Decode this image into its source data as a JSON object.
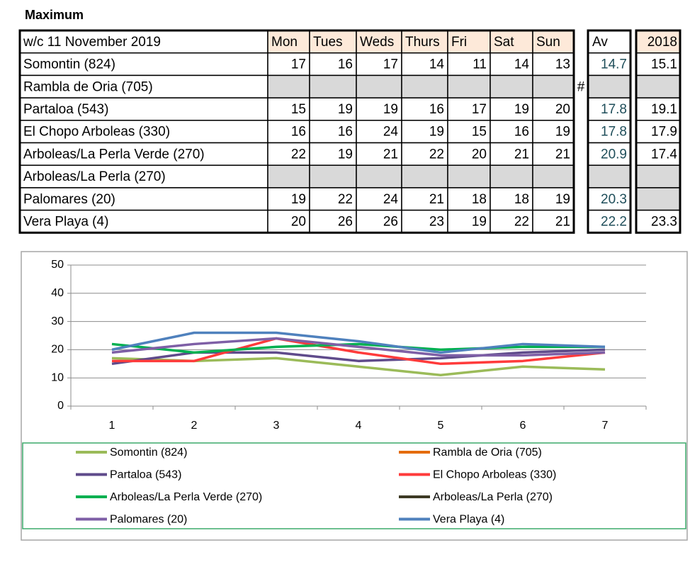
{
  "title": "Maximum",
  "table": {
    "header": [
      "w/c 11 November 2019",
      "Mon",
      "Tues",
      "Weds",
      "Thurs",
      "Fri",
      "Sat",
      "Sun",
      "Av",
      "2018"
    ],
    "rows": [
      {
        "name": "Somontin (824)",
        "values": [
          17,
          16,
          17,
          14,
          11,
          14,
          13
        ],
        "av": 14.7,
        "y2018": 15.1
      },
      {
        "name": "Rambla de Oria (705)",
        "values": [
          null,
          null,
          null,
          null,
          null,
          null,
          null
        ],
        "note": "#",
        "av": null,
        "y2018": null
      },
      {
        "name": "Partaloa (543)",
        "values": [
          15,
          19,
          19,
          16,
          17,
          19,
          20
        ],
        "av": 17.8,
        "y2018": 19.1
      },
      {
        "name": "El Chopo  Arboleas (330)",
        "values": [
          16,
          16,
          24,
          19,
          15,
          16,
          19
        ],
        "av": 17.8,
        "y2018": 17.9
      },
      {
        "name": "Arboleas/La Perla Verde (270)",
        "values": [
          22,
          19,
          21,
          22,
          20,
          21,
          21
        ],
        "av": 20.9,
        "y2018": 17.4
      },
      {
        "name": "Arboleas/La Perla (270)",
        "values": [
          null,
          null,
          null,
          null,
          null,
          null,
          null
        ],
        "av": null,
        "y2018": null
      },
      {
        "name": "Palomares (20)",
        "values": [
          19,
          22,
          24,
          21,
          18,
          18,
          19
        ],
        "av": 20.3,
        "y2018": null
      },
      {
        "name": "Vera Playa (4)",
        "values": [
          20,
          26,
          26,
          23,
          19,
          22,
          21
        ],
        "av": 22.2,
        "y2018": 23.3
      }
    ]
  },
  "chart_data": {
    "type": "line",
    "categories": [
      1,
      2,
      3,
      4,
      5,
      6,
      7
    ],
    "ylim": [
      0,
      50
    ],
    "yticks": [
      0,
      10,
      20,
      30,
      40,
      50
    ],
    "grid": true,
    "series": [
      {
        "name": "Somontin (824)",
        "color": "#9bbb59",
        "values": [
          17,
          16,
          17,
          14,
          11,
          14,
          13
        ]
      },
      {
        "name": "Rambla de Oria (705)",
        "color": "#e46c0a",
        "values": [
          null,
          null,
          null,
          null,
          null,
          null,
          null
        ]
      },
      {
        "name": "Partaloa (543)",
        "color": "#5f4b8b",
        "values": [
          15,
          19,
          19,
          16,
          17,
          19,
          20
        ]
      },
      {
        "name": "El Chopo  Arboleas (330)",
        "color": "#ff3b3b",
        "values": [
          16,
          16,
          24,
          19,
          15,
          16,
          19
        ]
      },
      {
        "name": "Arboleas/La Perla Verde (270)",
        "color": "#00b050",
        "values": [
          22,
          19,
          21,
          22,
          20,
          21,
          21
        ]
      },
      {
        "name": "Arboleas/La Perla (270)",
        "color": "#3d3a24",
        "values": [
          null,
          null,
          null,
          null,
          null,
          null,
          null
        ]
      },
      {
        "name": "Palomares (20)",
        "color": "#7e5fa6",
        "values": [
          19,
          22,
          24,
          21,
          18,
          18,
          19
        ]
      },
      {
        "name": "Vera Playa (4)",
        "color": "#4f81bd",
        "values": [
          20,
          26,
          26,
          23,
          19,
          22,
          21
        ]
      }
    ]
  }
}
